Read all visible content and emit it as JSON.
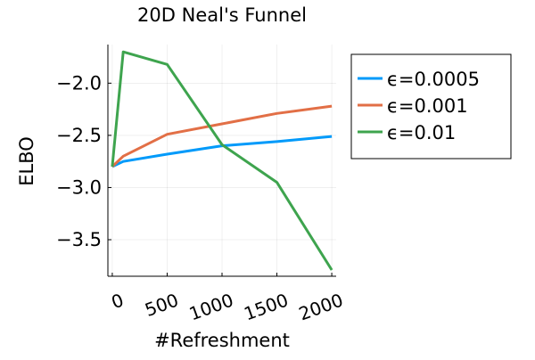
{
  "chart_data": {
    "type": "line",
    "title": "20D Neal's Funnel",
    "xlabel": "#Refreshment",
    "ylabel": "ELBO",
    "xlim": [
      -40,
      2040
    ],
    "ylim": [
      -3.85,
      -1.63
    ],
    "xticks": [
      0,
      500,
      1000,
      1500,
      2000
    ],
    "xtick_labels": [
      "0",
      "500",
      "1000",
      "1500",
      "2000"
    ],
    "yticks": [
      -2.0,
      -2.5,
      -3.0,
      -3.5
    ],
    "ytick_labels": [
      "−2.0",
      "−2.5",
      "−3.0",
      "−3.5"
    ],
    "grid": true,
    "legend_position": "outer-right",
    "series": [
      {
        "name": "ϵ=0.0005",
        "color": "#009AFA",
        "x": [
          0,
          100,
          500,
          1000,
          1500,
          2000
        ],
        "y": [
          -2.8,
          -2.75,
          -2.68,
          -2.6,
          -2.56,
          -2.51
        ]
      },
      {
        "name": "ϵ=0.001",
        "color": "#E26F46",
        "x": [
          0,
          100,
          500,
          1000,
          1500,
          2000
        ],
        "y": [
          -2.8,
          -2.7,
          -2.49,
          -2.39,
          -2.29,
          -2.22
        ]
      },
      {
        "name": "ϵ=0.01",
        "color": "#3EA44E",
        "x": [
          0,
          100,
          500,
          1000,
          1500,
          2000
        ],
        "y": [
          -2.8,
          -1.7,
          -1.82,
          -2.59,
          -2.95,
          -3.79
        ]
      }
    ]
  }
}
